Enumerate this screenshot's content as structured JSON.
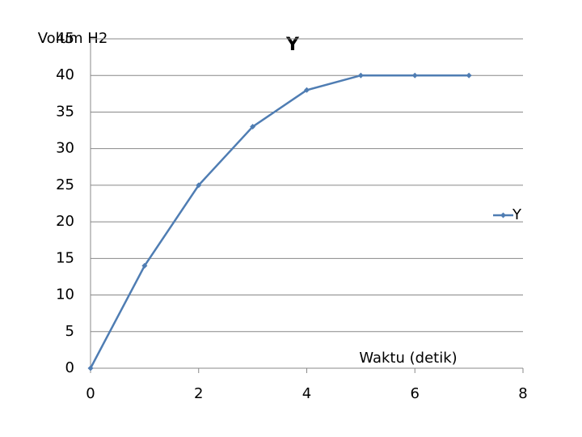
{
  "chart_data": {
    "type": "line",
    "title": "Y",
    "y_label": "Volum H2",
    "x_label": "Waktu (detik)",
    "x": [
      0,
      1,
      2,
      3,
      4,
      5,
      6,
      7
    ],
    "series": [
      {
        "name": "Y",
        "color": "#4f7db3",
        "values": [
          0,
          14,
          25,
          33,
          38,
          40,
          40,
          40
        ]
      }
    ],
    "xlim": [
      0,
      8
    ],
    "xticks": [
      0,
      2,
      4,
      6,
      8
    ],
    "ylim": [
      0,
      45
    ],
    "yticks": [
      0,
      5,
      10,
      15,
      20,
      25,
      30,
      35,
      40,
      45
    ],
    "grid": true,
    "legend": "right"
  }
}
